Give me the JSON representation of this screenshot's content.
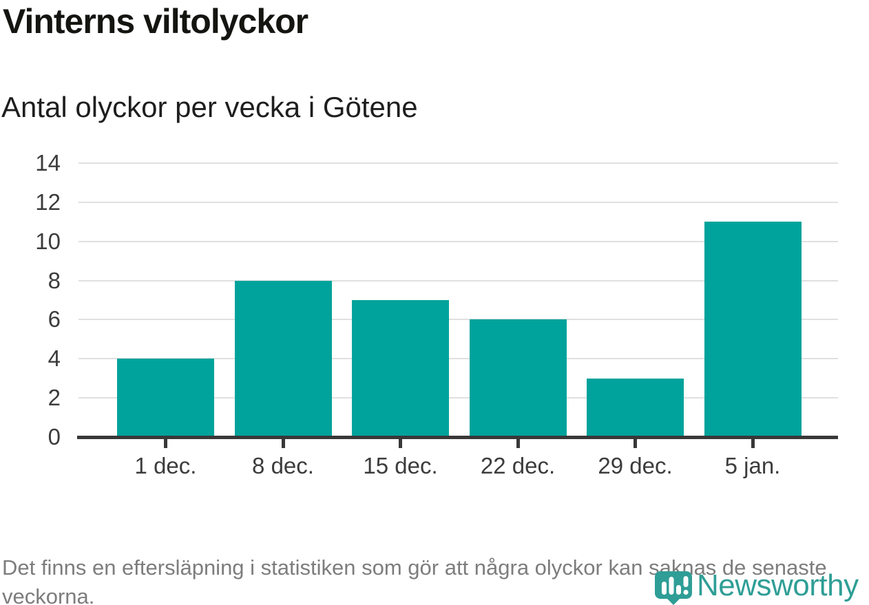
{
  "header": {
    "title": "Vinterns viltolyckor",
    "subtitle": "Antal olyckor per vecka i Götene"
  },
  "chart_data": {
    "type": "bar",
    "title": "Vinterns viltolyckor",
    "subtitle": "Antal olyckor per vecka i Götene",
    "categories": [
      "1 dec.",
      "8 dec.",
      "15 dec.",
      "22 dec.",
      "29 dec.",
      "5 jan."
    ],
    "values": [
      4,
      8,
      7,
      6,
      3,
      11
    ],
    "xlabel": "",
    "ylabel": "",
    "ylim": [
      0,
      14
    ],
    "yticks": [
      0,
      2,
      4,
      6,
      8,
      10,
      12,
      14
    ],
    "grid": true,
    "legend_position": "none",
    "bar_color": "#00a39b",
    "axis_color": "#383838",
    "grid_color": "#e0e0e0",
    "tick_label_color": "#3c3c3c"
  },
  "footer": {
    "note": "Det finns en eftersläpning i statistiken som gör att några olyckor kan saknas de senaste veckorna.",
    "brand": "Newsworthy",
    "brand_color": "#2f9e96",
    "brand_icon": "chart-pin-icon"
  }
}
